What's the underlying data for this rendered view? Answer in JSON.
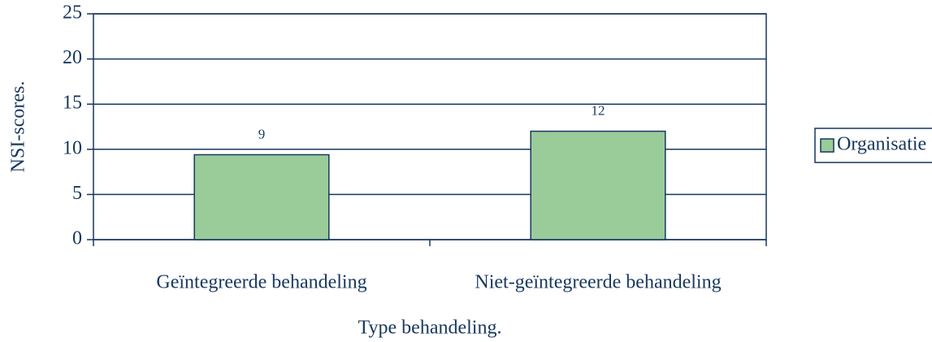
{
  "chart_data": {
    "type": "bar",
    "categories": [
      "Geïntegreerde behandeling",
      "Niet-geïntegreerde behandeling"
    ],
    "series": [
      {
        "name": "Organisatie",
        "color": "#99cc99",
        "values": [
          9.4,
          12
        ],
        "value_labels": [
          "9",
          "12"
        ]
      }
    ],
    "xlabel": "Type behandeling.",
    "ylabel": "NSI-scores.",
    "ylim": [
      0,
      25
    ],
    "yticks": [
      0,
      5,
      10,
      15,
      20,
      25
    ],
    "grid": true,
    "legend": "right"
  }
}
